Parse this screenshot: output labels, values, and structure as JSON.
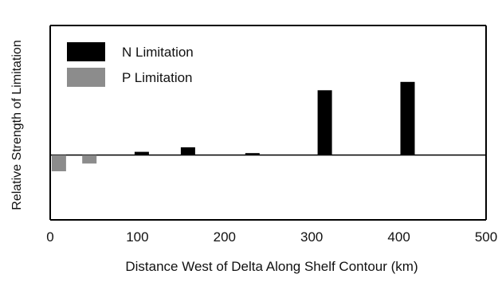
{
  "chart_data": {
    "type": "bar",
    "title": "",
    "xlabel": "Distance West of Delta Along Shelf Contour (km)",
    "ylabel": "Relative Strength of Limitation",
    "xlim": [
      0,
      500
    ],
    "ylim": [
      -1,
      2
    ],
    "x_ticks": [
      "0",
      "100",
      "200",
      "300",
      "400",
      "500"
    ],
    "y_tick_labels_shown": false,
    "grid": false,
    "zero_line": true,
    "legend_position": "top-left",
    "colors": {
      "N Limitation": "#000000",
      "P Limitation": "#8c8c8c",
      "axis": "#000000"
    },
    "series": [
      {
        "name": "N Limitation",
        "points": [
          {
            "x": 105,
            "y": 0.05
          },
          {
            "x": 158,
            "y": 0.12
          },
          {
            "x": 232,
            "y": 0.03
          },
          {
            "x": 315,
            "y": 1.0
          },
          {
            "x": 410,
            "y": 1.13
          }
        ]
      },
      {
        "name": "P Limitation",
        "points": [
          {
            "x": 10,
            "y": -0.25
          },
          {
            "x": 45,
            "y": -0.13
          }
        ]
      }
    ]
  }
}
